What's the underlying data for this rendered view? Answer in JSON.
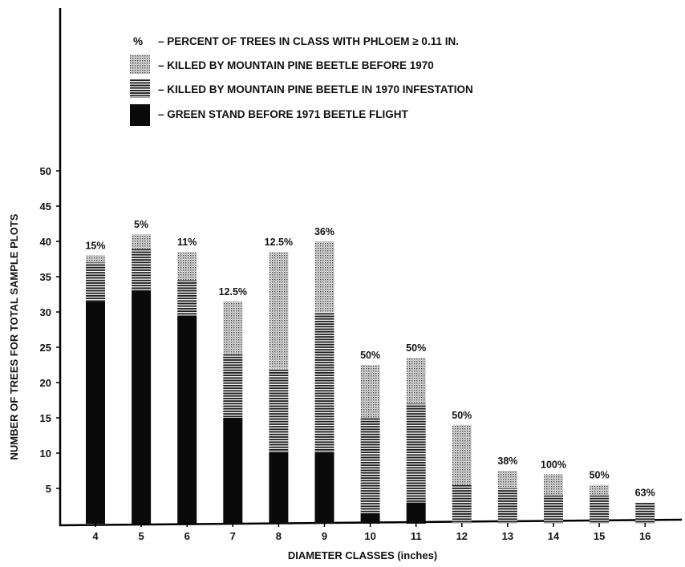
{
  "chart_data": {
    "type": "bar",
    "stacked": true,
    "categories": [
      "4",
      "5",
      "6",
      "7",
      "8",
      "9",
      "10",
      "11",
      "12",
      "13",
      "14",
      "15",
      "16"
    ],
    "series": [
      {
        "name": "– GREEN STAND BEFORE 1971 BEETLE FLIGHT",
        "values": [
          31.5,
          33,
          29.5,
          15,
          10,
          10,
          1.5,
          3,
          0,
          0,
          0,
          0,
          0
        ],
        "pattern": "solid",
        "color": "#0a0a0a"
      },
      {
        "name": "– KILLED BY MOUNTAIN PINE BEETLE IN 1970 INFESTATION",
        "values": [
          5.5,
          6,
          5,
          9,
          12,
          20,
          13.5,
          14,
          5.5,
          5,
          4,
          4,
          3
        ],
        "pattern": "horizontal-lines",
        "color": "#222222"
      },
      {
        "name": "– KILLED BY MOUNTAIN PINE BEETLE BEFORE 1970",
        "values": [
          1,
          2,
          4,
          7.5,
          16.5,
          10,
          7.5,
          6.5,
          8.5,
          2.5,
          3,
          1.5,
          0
        ],
        "pattern": "dotted",
        "color": "#555555"
      }
    ],
    "bar_labels": [
      "15%",
      "5%",
      "11%",
      "12.5%",
      "12.5%",
      "36%",
      "50%",
      "50%",
      "50%",
      "38%",
      "100%",
      "50%",
      "63%"
    ],
    "percent_legend_symbol": "%",
    "percent_legend_text": "– PERCENT OF TREES IN CLASS WITH PHLOEM ≥ 0.11 IN.",
    "title": "",
    "xlabel": "DIAMETER CLASSES (inches)",
    "ylabel": "NUMBER OF TREES FOR TOTAL SAMPLE PLOTS",
    "y_ticks": [
      5,
      10,
      15,
      20,
      25,
      30,
      35,
      40,
      45,
      50
    ],
    "ylim": [
      0,
      50
    ],
    "grid": false,
    "legend_position": "top"
  }
}
